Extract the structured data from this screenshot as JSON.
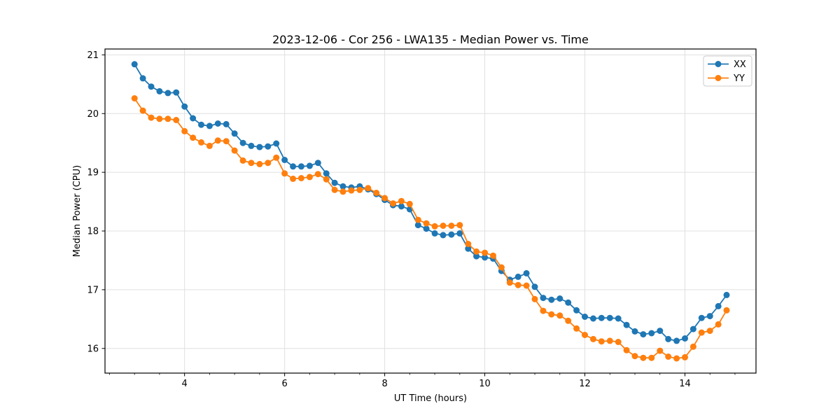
{
  "chart_data": {
    "type": "line",
    "title": "2023-12-06 - Cor 256 - LWA135 - Median Power vs. Time",
    "xlabel": "UT Time (hours)",
    "ylabel": "Median Power (CPU)",
    "xlim": [
      2.41,
      15.42
    ],
    "ylim": [
      15.58,
      21.1
    ],
    "xticks": [
      4,
      6,
      8,
      10,
      12,
      14
    ],
    "yticks": [
      16,
      17,
      18,
      19,
      20,
      21
    ],
    "x_minor_tick_step": 0.5,
    "grid": "major-only",
    "grid_color": "#e0e0e0",
    "spine_color": "#000000",
    "text_color": "#000000",
    "background": "#ffffff",
    "legend_position": "upper right",
    "marker": "circle",
    "x": [
      3.0,
      3.167,
      3.333,
      3.5,
      3.667,
      3.833,
      4.0,
      4.167,
      4.333,
      4.5,
      4.667,
      4.833,
      5.0,
      5.167,
      5.333,
      5.5,
      5.667,
      5.833,
      6.0,
      6.167,
      6.333,
      6.5,
      6.667,
      6.833,
      7.0,
      7.167,
      7.333,
      7.5,
      7.667,
      7.833,
      8.0,
      8.167,
      8.333,
      8.5,
      8.667,
      8.833,
      9.0,
      9.167,
      9.333,
      9.5,
      9.667,
      9.833,
      10.0,
      10.167,
      10.333,
      10.5,
      10.667,
      10.833,
      11.0,
      11.167,
      11.333,
      11.5,
      11.667,
      11.833,
      12.0,
      12.167,
      12.333,
      12.5,
      12.667,
      12.833,
      13.0,
      13.167,
      13.333,
      13.5,
      13.667,
      13.833,
      14.0,
      14.167,
      14.333,
      14.5,
      14.667,
      14.833
    ],
    "series": [
      {
        "name": "XX",
        "color": "#1f77b4",
        "values": [
          20.84,
          20.6,
          20.46,
          20.38,
          20.35,
          20.36,
          20.12,
          19.92,
          19.81,
          19.79,
          19.83,
          19.82,
          19.66,
          19.5,
          19.45,
          19.43,
          19.44,
          19.49,
          19.21,
          19.1,
          19.1,
          19.11,
          19.16,
          18.98,
          18.82,
          18.76,
          18.74,
          18.76,
          18.71,
          18.63,
          18.53,
          18.44,
          18.42,
          18.37,
          18.1,
          18.04,
          17.96,
          17.93,
          17.94,
          17.96,
          17.7,
          17.57,
          17.55,
          17.53,
          17.32,
          17.17,
          17.22,
          17.28,
          17.05,
          16.86,
          16.83,
          16.85,
          16.78,
          16.65,
          16.54,
          16.51,
          16.52,
          16.52,
          16.51,
          16.4,
          16.29,
          16.24,
          16.26,
          16.3,
          16.16,
          16.13,
          16.17,
          16.33,
          16.52,
          16.55,
          16.72,
          16.91
        ]
      },
      {
        "name": "YY",
        "color": "#ff7f0e",
        "values": [
          20.26,
          20.05,
          19.93,
          19.91,
          19.91,
          19.89,
          19.7,
          19.59,
          19.51,
          19.45,
          19.54,
          19.53,
          19.37,
          19.2,
          19.16,
          19.14,
          19.16,
          19.25,
          18.98,
          18.89,
          18.9,
          18.92,
          18.97,
          18.88,
          18.7,
          18.67,
          18.69,
          18.7,
          18.73,
          18.65,
          18.56,
          18.47,
          18.51,
          18.46,
          18.19,
          18.13,
          18.08,
          18.09,
          18.09,
          18.1,
          17.78,
          17.65,
          17.63,
          17.58,
          17.38,
          17.12,
          17.08,
          17.07,
          16.84,
          16.64,
          16.58,
          16.56,
          16.47,
          16.34,
          16.23,
          16.16,
          16.12,
          16.13,
          16.11,
          15.97,
          15.87,
          15.84,
          15.84,
          15.96,
          15.86,
          15.83,
          15.85,
          16.03,
          16.27,
          16.3,
          16.41,
          16.65
        ]
      }
    ]
  }
}
